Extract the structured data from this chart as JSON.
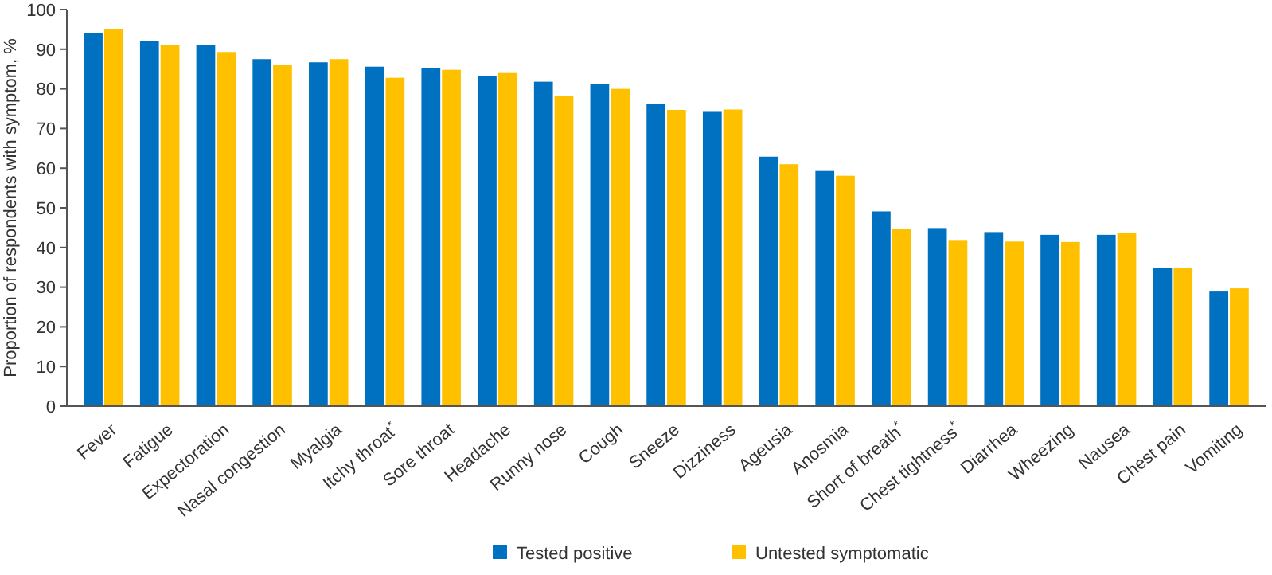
{
  "chart_data": {
    "type": "bar",
    "ylabel": "Proportion of respondents with symptom, %",
    "categories": [
      "Fever",
      "Fatigue",
      "Expectoration",
      "Nasal congestion",
      "Myalgia",
      "Itchy throat$^{*}$",
      "Sore throat",
      "Headache",
      "Runny nose",
      "Cough",
      "Sneeze",
      "Dizziness",
      "Ageusia",
      "Anosmia",
      "Short of breath$^{*}$",
      "Chest tightness$^{*}$",
      "Diarrhea",
      "Wheezing",
      "Nausea",
      "Chest pain",
      "Vomiting"
    ],
    "series": [
      {
        "name": "Tested positive",
        "color": "#0070c0",
        "values": [
          94,
          92,
          91,
          87.5,
          86.7,
          85.6,
          85.2,
          83.3,
          81.8,
          81.2,
          76.2,
          74.2,
          62.9,
          59.3,
          49.1,
          44.9,
          43.9,
          43.2,
          43.2,
          34.9,
          28.9
        ]
      },
      {
        "name": "Untested symptomatic",
        "color": "#ffc000",
        "values": [
          95,
          91,
          89.3,
          86,
          87.5,
          82.8,
          84.8,
          84,
          78.3,
          80,
          74.7,
          74.8,
          61,
          58.1,
          44.7,
          41.9,
          41.5,
          41.4,
          43.6,
          34.9,
          29.7
        ]
      }
    ],
    "ylim": [
      0,
      100
    ],
    "yticks": [
      0,
      10,
      20,
      30,
      40,
      50,
      60,
      70,
      80,
      90,
      100
    ],
    "grid": false,
    "legend": "bottom"
  }
}
